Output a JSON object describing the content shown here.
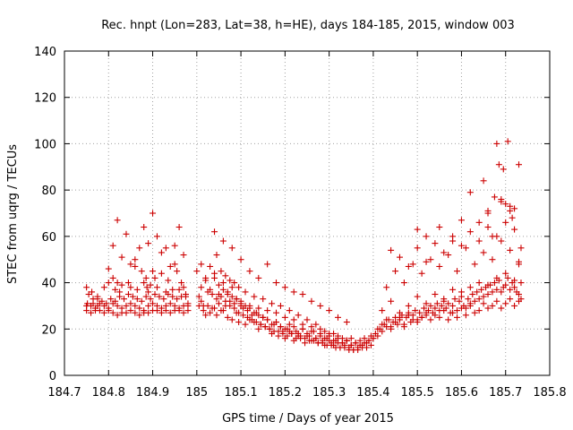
{
  "chart_data": {
    "type": "scatter",
    "title": "Rec. hnpt (Lon=283, Lat=38, h=HE), days 184-185, 2015, window 003",
    "xlabel": "GPS time / Days of year 2015",
    "ylabel": "STEC from uqrg / TECUs",
    "xlim": [
      184.7,
      185.8
    ],
    "ylim": [
      0,
      140
    ],
    "xticks": [
      184.7,
      184.8,
      184.9,
      185.0,
      185.1,
      185.2,
      185.3,
      185.4,
      185.5,
      185.6,
      185.7,
      185.8
    ],
    "xtick_labels": [
      "184.7",
      "184.8",
      "184.9",
      "185",
      "185.1",
      "185.2",
      "185.3",
      "185.4",
      "185.5",
      "185.6",
      "185.7",
      "185.8"
    ],
    "yticks": [
      0,
      20,
      40,
      60,
      80,
      100,
      120,
      140
    ],
    "ytick_labels": [
      "0",
      "20",
      "40",
      "60",
      "80",
      "100",
      "120",
      "140"
    ],
    "grid": true,
    "marker": "+",
    "color": "#cc0000",
    "series": [
      {
        "name": "STEC",
        "x": [
          184.75,
          184.752,
          184.76,
          184.765,
          184.77,
          184.775,
          184.78,
          184.79,
          184.8,
          184.81,
          184.82,
          184.83,
          184.84,
          184.85,
          184.86,
          184.87,
          184.88,
          184.89,
          184.9,
          184.91,
          184.92,
          184.93,
          184.94,
          184.95,
          184.96,
          184.97,
          184.98,
          184.75,
          184.76,
          184.77,
          184.78,
          184.79,
          184.8,
          184.81,
          184.82,
          184.83,
          184.84,
          184.85,
          184.86,
          184.87,
          184.88,
          184.89,
          184.9,
          184.91,
          184.92,
          184.93,
          184.94,
          184.95,
          184.96,
          184.97,
          184.98,
          184.755,
          184.765,
          184.775,
          184.785,
          184.795,
          184.805,
          184.815,
          184.825,
          184.835,
          184.845,
          184.855,
          184.865,
          184.875,
          184.885,
          184.895,
          184.905,
          184.915,
          184.925,
          184.935,
          184.945,
          184.955,
          184.965,
          184.975,
          184.75,
          184.762,
          184.775,
          184.79,
          184.8,
          184.81,
          184.815,
          184.82,
          184.825,
          184.83,
          184.845,
          184.85,
          184.86,
          184.865,
          184.875,
          184.88,
          184.885,
          184.887,
          184.89,
          184.895,
          184.9,
          184.905,
          184.91,
          184.92,
          184.93,
          184.935,
          184.945,
          184.95,
          184.955,
          184.96,
          184.965,
          184.97,
          184.975,
          184.98,
          184.8,
          184.81,
          184.83,
          184.85,
          184.87,
          184.89,
          184.91,
          184.93,
          184.95,
          184.97,
          184.84,
          184.88,
          184.92,
          184.96,
          184.82,
          184.86,
          184.9,
          184.94,
          185.005,
          185.01,
          185.015,
          185.02,
          185.025,
          185.03,
          185.035,
          185.04,
          185.045,
          185.05,
          185.055,
          185.06,
          185.065,
          185.07,
          185.075,
          185.08,
          185.085,
          185.09,
          185.095,
          185.1,
          185.105,
          185.11,
          185.115,
          185.12,
          185.125,
          185.13,
          185.135,
          185.14,
          185.145,
          185.15,
          185.155,
          185.16,
          185.165,
          185.17,
          185.175,
          185.18,
          185.185,
          185.19,
          185.195,
          185.2,
          185.205,
          185.21,
          185.215,
          185.22,
          185.225,
          185.23,
          185.235,
          185.24,
          185.245,
          185.25,
          185.255,
          185.26,
          185.265,
          185.27,
          185.275,
          185.28,
          185.285,
          185.29,
          185.295,
          185.3,
          185.305,
          185.31,
          185.315,
          185.32,
          185.325,
          185.33,
          185.335,
          185.34,
          185.345,
          185.35,
          185.355,
          185.36,
          185.365,
          185.37,
          185.375,
          185.38,
          185.385,
          185.39,
          185.395,
          185.4,
          185.005,
          185.015,
          185.025,
          185.035,
          185.045,
          185.055,
          185.065,
          185.075,
          185.085,
          185.095,
          185.105,
          185.115,
          185.125,
          185.135,
          185.145,
          185.155,
          185.165,
          185.175,
          185.185,
          185.195,
          185.205,
          185.215,
          185.225,
          185.235,
          185.245,
          185.255,
          185.265,
          185.275,
          185.285,
          185.295,
          185.305,
          185.315,
          185.325,
          185.335,
          185.345,
          185.355,
          185.365,
          185.375,
          185.385,
          185.395,
          185.01,
          185.02,
          185.03,
          185.04,
          185.05,
          185.06,
          185.07,
          185.08,
          185.09,
          185.1,
          185.11,
          185.12,
          185.13,
          185.14,
          185.15,
          185.16,
          185.17,
          185.18,
          185.19,
          185.2,
          185.21,
          185.22,
          185.23,
          185.24,
          185.25,
          185.26,
          185.27,
          185.28,
          185.29,
          185.3,
          185.31,
          185.32,
          185.33,
          185.34,
          185.35,
          185.36,
          185.37,
          185.38,
          185.39,
          185.0,
          185.01,
          185.02,
          185.03,
          185.04,
          185.045,
          185.05,
          185.055,
          185.06,
          185.065,
          185.07,
          185.075,
          185.08,
          185.085,
          185.09,
          185.095,
          185.1,
          185.11,
          185.12,
          185.13,
          185.14,
          185.15,
          185.16,
          185.17,
          185.18,
          185.19,
          185.2,
          185.21,
          185.22,
          185.23,
          185.24,
          185.25,
          185.26,
          185.27,
          185.28,
          185.29,
          185.3,
          185.31,
          185.32,
          185.33,
          185.34,
          185.35,
          185.04,
          185.06,
          185.08,
          185.1,
          185.12,
          185.14,
          185.16,
          185.18,
          185.2,
          185.22,
          185.24,
          185.26,
          185.28,
          185.3,
          185.32,
          185.34,
          185.4,
          185.405,
          185.41,
          185.415,
          185.42,
          185.425,
          185.43,
          185.435,
          185.44,
          185.445,
          185.45,
          185.455,
          185.46,
          185.465,
          185.47,
          185.475,
          185.48,
          185.485,
          185.49,
          185.495,
          185.5,
          185.505,
          185.51,
          185.515,
          185.52,
          185.525,
          185.53,
          185.535,
          185.54,
          185.545,
          185.55,
          185.555,
          185.56,
          185.565,
          185.57,
          185.575,
          185.58,
          185.585,
          185.59,
          185.595,
          185.6,
          185.605,
          185.61,
          185.615,
          185.62,
          185.625,
          185.63,
          185.635,
          185.64,
          185.645,
          185.65,
          185.655,
          185.66,
          185.665,
          185.67,
          185.675,
          185.68,
          185.685,
          185.69,
          185.695,
          185.7,
          185.705,
          185.71,
          185.715,
          185.72,
          185.725,
          185.73,
          185.735,
          185.41,
          185.42,
          185.43,
          185.44,
          185.45,
          185.46,
          185.47,
          185.48,
          185.49,
          185.5,
          185.51,
          185.52,
          185.53,
          185.54,
          185.55,
          185.56,
          185.57,
          185.58,
          185.59,
          185.6,
          185.61,
          185.62,
          185.63,
          185.64,
          185.65,
          185.66,
          185.67,
          185.68,
          185.69,
          185.7,
          185.71,
          185.72,
          185.73,
          185.42,
          185.44,
          185.46,
          185.48,
          185.5,
          185.52,
          185.54,
          185.56,
          185.58,
          185.6,
          185.62,
          185.64,
          185.66,
          185.68,
          185.7,
          185.72,
          185.735,
          185.43,
          185.45,
          185.47,
          185.49,
          185.51,
          185.53,
          185.55,
          185.57,
          185.59,
          185.61,
          185.63,
          185.65,
          185.67,
          185.69,
          185.71,
          185.73,
          185.44,
          185.46,
          185.48,
          185.5,
          185.52,
          185.54,
          185.56,
          185.58,
          185.6,
          185.62,
          185.64,
          185.66,
          185.68,
          185.7,
          185.72,
          185.5,
          185.52,
          185.55,
          185.58,
          185.6,
          185.62,
          185.64,
          185.65,
          185.66,
          185.67,
          185.675,
          185.68,
          185.685,
          185.69,
          185.695,
          185.7,
          185.705,
          185.71,
          185.715,
          185.72,
          185.73,
          185.735,
          185.66,
          185.69,
          185.71,
          185.73
        ],
        "y": [
          30,
          31,
          30,
          31,
          29,
          30,
          31,
          30,
          29,
          31,
          30,
          29,
          30,
          31,
          30,
          29,
          28,
          30,
          31,
          30,
          29,
          30,
          31,
          30,
          29,
          30,
          31,
          28,
          27,
          28,
          28,
          27,
          28,
          27,
          26,
          27,
          27,
          28,
          27,
          26,
          27,
          27,
          28,
          28,
          27,
          28,
          27,
          28,
          28,
          27,
          28,
          35,
          33,
          34,
          32,
          31,
          33,
          32,
          34,
          33,
          35,
          34,
          33,
          32,
          34,
          33,
          35,
          34,
          33,
          35,
          34,
          33,
          34,
          35,
          38,
          36,
          33,
          38,
          40,
          42,
          37,
          40,
          36,
          39,
          40,
          38,
          47,
          37,
          45,
          40,
          42,
          38,
          36,
          39,
          45,
          42,
          38,
          44,
          36,
          41,
          37,
          48,
          45,
          37,
          40,
          38,
          34,
          30,
          46,
          56,
          51,
          48,
          55,
          57,
          60,
          55,
          56,
          52,
          61,
          64,
          53,
          64,
          67,
          50,
          70,
          47,
          30,
          32,
          28,
          26,
          30,
          27,
          35,
          29,
          26,
          31,
          34,
          28,
          30,
          25,
          32,
          24,
          31,
          27,
          23,
          30,
          29,
          22,
          28,
          24,
          26,
          23,
          27,
          20,
          22,
          25,
          21,
          24,
          20,
          18,
          22,
          23,
          17,
          21,
          19,
          16,
          20,
          22,
          18,
          15,
          19,
          17,
          16,
          20,
          14,
          18,
          17,
          15,
          19,
          16,
          14,
          17,
          15,
          13,
          16,
          15,
          14,
          13,
          15,
          14,
          12,
          14,
          13,
          15,
          12,
          13,
          11,
          14,
          12,
          15,
          13,
          16,
          14,
          15,
          17,
          16,
          34,
          30,
          36,
          29,
          33,
          28,
          32,
          30,
          29,
          27,
          26,
          25,
          24,
          23,
          22,
          21,
          20,
          19,
          19,
          18,
          17,
          18,
          16,
          17,
          16,
          15,
          15,
          14,
          14,
          13,
          13,
          12,
          12,
          12,
          11,
          11,
          11,
          12,
          12,
          13,
          38,
          42,
          37,
          44,
          35,
          40,
          36,
          38,
          33,
          32,
          30,
          29,
          27,
          26,
          25,
          24,
          22,
          23,
          21,
          20,
          19,
          21,
          18,
          20,
          17,
          19,
          16,
          18,
          16,
          17,
          15,
          16,
          14,
          15,
          13,
          14,
          13,
          14,
          15,
          45,
          48,
          41,
          47,
          42,
          52,
          39,
          45,
          37,
          43,
          35,
          41,
          34,
          40,
          33,
          38,
          31,
          36,
          30,
          34,
          29,
          33,
          28,
          31,
          27,
          30,
          25,
          28,
          24,
          26,
          22,
          24,
          21,
          22,
          20,
          19,
          18,
          18,
          17,
          16,
          15,
          16,
          62,
          58,
          55,
          50,
          45,
          42,
          48,
          40,
          38,
          36,
          35,
          32,
          30,
          28,
          25,
          23,
          16,
          18,
          17,
          20,
          19,
          22,
          21,
          24,
          20,
          23,
          25,
          22,
          24,
          26,
          21,
          25,
          27,
          23,
          26,
          28,
          24,
          27,
          25,
          29,
          26,
          28,
          30,
          27,
          29,
          31,
          28,
          30,
          32,
          29,
          31,
          27,
          30,
          33,
          28,
          32,
          34,
          30,
          29,
          33,
          31,
          35,
          32,
          36,
          33,
          37,
          34,
          38,
          35,
          39,
          36,
          40,
          37,
          41,
          36,
          38,
          39,
          42,
          37,
          40,
          38,
          36,
          35,
          33,
          20,
          22,
          24,
          21,
          23,
          25,
          22,
          26,
          24,
          23,
          25,
          27,
          24,
          26,
          25,
          28,
          24,
          27,
          25,
          29,
          26,
          30,
          27,
          28,
          31,
          29,
          30,
          32,
          29,
          31,
          33,
          30,
          32,
          28,
          32,
          27,
          30,
          34,
          31,
          35,
          33,
          37,
          36,
          38,
          40,
          39,
          42,
          44,
          41,
          40,
          38,
          45,
          40,
          48,
          44,
          50,
          47,
          52,
          45,
          55,
          48,
          53,
          50,
          58,
          54,
          49,
          54,
          51,
          47,
          55,
          49,
          57,
          53,
          60,
          56,
          62,
          58,
          64,
          60,
          66,
          63,
          63,
          60,
          64,
          58,
          67,
          79,
          66,
          84,
          71,
          60,
          77,
          100,
          91,
          76,
          89,
          74,
          101,
          71,
          68,
          72,
          91,
          55,
          70,
          75,
          73,
          48
        ]
      }
    ]
  }
}
